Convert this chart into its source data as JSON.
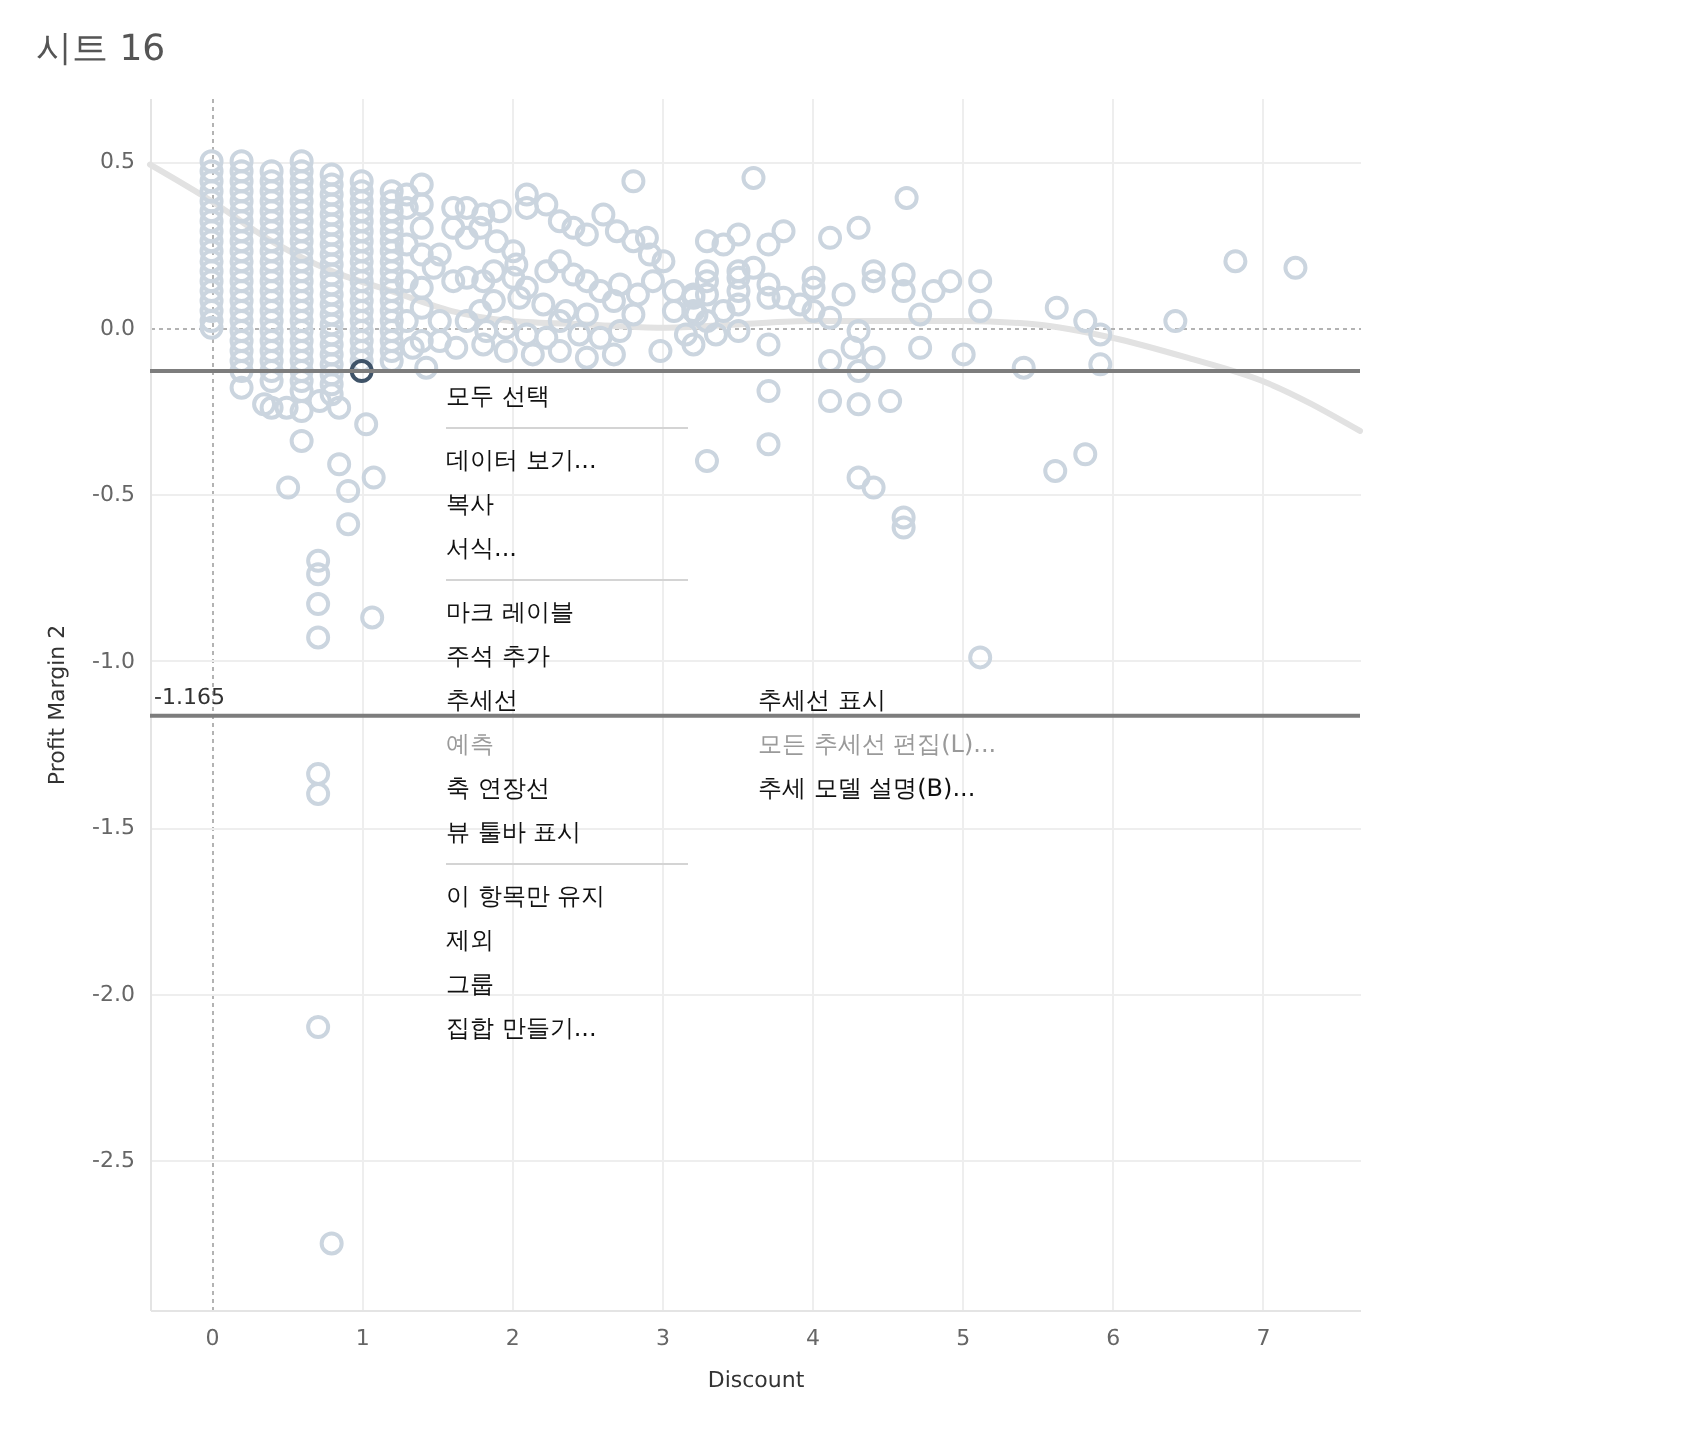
{
  "chart_data": {
    "type": "scatter",
    "title": "시트 16",
    "xlabel": "Discount",
    "ylabel": "Profit Margin 2",
    "xlim": [
      -0.41,
      7.65
    ],
    "ylim": [
      -2.95,
      0.69
    ],
    "xticks": [
      0,
      1,
      2,
      3,
      4,
      5,
      6,
      7
    ],
    "yticks": [
      0.5,
      {
        "value": 0,
        "label": "0.0"
      },
      -0.5,
      {
        "value": -1,
        "label": "-1.0"
      },
      -1.5,
      {
        "value": -2,
        "label": "-2.0"
      },
      -2.5
    ],
    "grid": true,
    "ref_lines": [
      {
        "axis": "y",
        "value": -0.13,
        "color": "#7d7d7d"
      },
      {
        "axis": "y",
        "value": -1.165,
        "label": "-1.165",
        "color": "#7d7d7d"
      }
    ],
    "annotations": [
      "모두 선택",
      "데이터 보기...",
      "복사",
      "서식...",
      "마크 레이블",
      "주석 추가",
      "추세선",
      "예측",
      "축 연장선",
      "뷰 툴바 표시",
      "이 항목만 유지",
      "제외",
      "그룹",
      "집합 만들기...",
      "추세선 표시",
      "모든 추세선 편집(L)...",
      "추세 모델 설명(B)..."
    ],
    "series": [
      {
        "type": "line",
        "color": "#e2e2e2",
        "x": [
          -0.41,
          0,
          0.4,
          0.8,
          1.2,
          1.6,
          2,
          2.5,
          3,
          3.5,
          4,
          4.5,
          5,
          5.5,
          6,
          6.5,
          7,
          7.65
        ],
        "values": [
          0.49,
          0.38,
          0.26,
          0.17,
          0.11,
          0.05,
          0.02,
          0.01,
          0,
          0.01,
          0.02,
          0.02,
          0.02,
          0.01,
          -0.03,
          -0.09,
          -0.16,
          -0.31
        ]
      },
      {
        "color": "#cbd5df",
        "marker": "circle",
        "x": [
          0,
          0,
          0,
          0,
          0,
          0,
          0,
          0,
          0,
          0,
          0,
          0,
          0,
          0,
          0,
          0,
          0,
          0,
          0.2,
          0.2,
          0.2,
          0.2,
          0.2,
          0.2,
          0.2,
          0.2,
          0.2,
          0.2,
          0.2,
          0.2,
          0.2,
          0.2,
          0.2,
          0.2,
          0.2,
          0.2,
          0.2,
          0.2,
          0.2,
          0.2,
          0.2,
          0.4,
          0.4,
          0.4,
          0.4,
          0.4,
          0.4,
          0.4,
          0.4,
          0.4,
          0.4,
          0.4,
          0.4,
          0.4,
          0.4,
          0.4,
          0.4,
          0.4,
          0.4,
          0.4,
          0.4,
          0.4,
          0.4,
          0.6,
          0.6,
          0.6,
          0.6,
          0.6,
          0.6,
          0.6,
          0.6,
          0.6,
          0.6,
          0.6,
          0.6,
          0.6,
          0.6,
          0.6,
          0.6,
          0.6,
          0.6,
          0.6,
          0.6,
          0.6,
          0.6,
          0.6,
          0.6,
          0.8,
          0.8,
          0.8,
          0.8,
          0.8,
          0.8,
          0.8,
          0.8,
          0.8,
          0.8,
          0.8,
          0.8,
          0.8,
          0.8,
          0.8,
          0.8,
          0.8,
          0.8,
          0.8,
          0.8,
          0.8,
          0.8,
          0.8,
          1,
          1,
          1,
          1,
          1,
          1,
          1,
          1,
          1,
          1,
          1,
          1,
          1,
          1,
          1,
          1,
          1,
          1,
          1,
          1.2,
          1.2,
          1.2,
          1.2,
          1.2,
          1.2,
          1.2,
          1.2,
          1.2,
          1.2,
          1.2,
          1.2,
          1.2,
          1.2,
          1.2,
          1.2,
          1.2,
          1.2,
          1.3,
          1.3,
          1.3,
          1.3,
          1.3,
          1.34,
          1.4,
          1.4,
          1.4,
          1.4,
          1.4,
          1.4,
          1.4,
          1.43,
          0.35,
          0.4,
          0.5,
          0.6,
          0.72,
          0.85,
          1.03,
          0.6,
          0.85,
          0.51,
          0.91,
          0.91,
          0.71,
          0.71,
          0.71,
          0.71,
          0.71,
          0.71,
          0.71,
          0.8,
          1.08,
          1.07,
          1.61,
          1.7,
          1.81,
          1.92,
          2.1,
          2.1,
          2.23,
          2.32,
          2.41,
          2.5,
          2.61,
          2.81,
          2.7,
          2.81,
          2.9,
          2.92,
          3.01,
          3.3,
          3.3,
          1.61,
          1.7,
          1.79,
          1.9,
          2.01,
          2.03,
          1.52,
          1.48,
          1.61,
          1.7,
          1.81,
          1.88,
          2.01,
          2.1,
          2.23,
          2.32,
          2.41,
          2.5,
          2.59,
          2.72,
          2.84,
          2.94,
          3.08,
          3.21,
          3.08,
          3.23,
          2.81,
          2.68,
          2.5,
          2.36,
          2.21,
          2.05,
          1.88,
          1.79,
          1.7,
          1.83,
          1.96,
          2.1,
          2.23,
          2.32,
          2.45,
          2.59,
          2.72,
          2.99,
          2.68,
          2.5,
          2.32,
          2.14,
          1.96,
          1.81,
          1.63,
          1.52,
          1.52,
          3.16,
          3.3,
          3.61,
          4.63,
          3.41,
          3.51,
          3.71,
          3.81,
          4.12,
          4.31,
          3.3,
          3.51,
          3.51,
          3.61,
          3.21,
          3.3,
          3.51,
          3.51,
          3.71,
          3.71,
          3.81,
          3.92,
          4.01,
          4.01,
          4.01,
          4.12,
          4.21,
          4.41,
          4.41,
          4.61,
          4.61,
          4.81,
          4.92,
          5.12,
          5.12,
          4.72,
          5.63,
          5.82,
          5.92,
          5.92,
          6.42,
          6.82,
          7.22,
          3.21,
          3.41,
          3.36,
          3.51,
          3.21,
          3.71,
          4.31,
          4.27,
          4.41,
          4.12,
          4.31,
          4.72,
          5.01,
          5.41,
          3.71,
          4.12,
          4.31,
          4.52,
          3.71,
          3.3,
          5.62,
          5.82,
          4.31,
          4.41,
          4.61,
          4.61,
          5.12
        ],
        "values": [
          0.5,
          0.47,
          0.44,
          0.41,
          0.38,
          0.35,
          0.32,
          0.29,
          0.26,
          0.23,
          0.2,
          0.17,
          0.14,
          0.11,
          0.08,
          0.05,
          0.02,
          0,
          0.5,
          0.47,
          0.44,
          0.41,
          0.38,
          0.35,
          0.32,
          0.29,
          0.26,
          0.23,
          0.2,
          0.17,
          0.14,
          0.11,
          0.08,
          0.05,
          0.02,
          -0.01,
          -0.04,
          -0.07,
          -0.1,
          -0.13,
          -0.18,
          0.47,
          0.44,
          0.41,
          0.38,
          0.35,
          0.32,
          0.29,
          0.26,
          0.23,
          0.2,
          0.17,
          0.14,
          0.11,
          0.08,
          0.05,
          0.02,
          -0.01,
          -0.04,
          -0.07,
          -0.1,
          -0.13,
          -0.16,
          0.5,
          0.47,
          0.44,
          0.41,
          0.38,
          0.35,
          0.32,
          0.29,
          0.26,
          0.23,
          0.2,
          0.17,
          0.14,
          0.11,
          0.08,
          0.05,
          0.02,
          -0.01,
          -0.04,
          -0.07,
          -0.1,
          -0.13,
          -0.16,
          -0.19,
          0.46,
          0.43,
          0.4,
          0.37,
          0.34,
          0.31,
          0.28,
          0.25,
          0.22,
          0.19,
          0.16,
          0.13,
          0.1,
          0.07,
          0.04,
          0.01,
          -0.02,
          -0.05,
          -0.08,
          -0.11,
          -0.14,
          -0.17,
          -0.2,
          0.44,
          0.41,
          0.38,
          0.35,
          0.32,
          0.29,
          0.26,
          0.23,
          0.2,
          0.17,
          0.14,
          0.11,
          0.08,
          0.05,
          0.02,
          -0.01,
          -0.04,
          -0.07,
          -0.1,
          0.41,
          0.38,
          0.35,
          0.32,
          0.29,
          0.26,
          0.23,
          0.2,
          0.17,
          0.14,
          0.11,
          0.08,
          0.05,
          0.02,
          -0.01,
          -0.04,
          -0.07,
          -0.1,
          0.4,
          0.36,
          0.25,
          0.14,
          0.02,
          -0.06,
          0.43,
          0.37,
          0.3,
          0.22,
          0.12,
          0.06,
          -0.04,
          -0.12,
          -0.23,
          -0.24,
          -0.24,
          -0.25,
          -0.22,
          -0.24,
          -0.29,
          -0.34,
          -0.41,
          -0.48,
          -0.49,
          -0.59,
          -0.7,
          -0.74,
          -0.83,
          -0.93,
          -1.34,
          -1.4,
          -2.1,
          -2.75,
          -0.45,
          -0.87,
          0.36,
          0.36,
          0.34,
          0.35,
          0.4,
          0.36,
          0.37,
          0.32,
          0.3,
          0.28,
          0.34,
          0.44,
          0.29,
          0.26,
          0.27,
          0.22,
          0.2,
          0.26,
          0.17,
          0.3,
          0.27,
          0.3,
          0.26,
          0.23,
          0.19,
          0.22,
          0.18,
          0.14,
          0.15,
          0.14,
          0.17,
          0.15,
          0.12,
          0.17,
          0.2,
          0.16,
          0.14,
          0.11,
          0.13,
          0.1,
          0.14,
          0.11,
          0.09,
          0.05,
          0.04,
          0.04,
          0.08,
          0.04,
          0.05,
          0.07,
          0.09,
          0.08,
          0.05,
          0.02,
          -0.01,
          0,
          -0.02,
          -0.03,
          0.02,
          -0.02,
          -0.03,
          -0.01,
          -0.07,
          -0.08,
          -0.09,
          -0.07,
          -0.08,
          -0.07,
          -0.05,
          -0.06,
          -0.04,
          0.02,
          -0.02,
          0.02,
          0.45,
          0.39,
          0.25,
          0.28,
          0.25,
          0.29,
          0.27,
          0.3,
          0.14,
          0.17,
          0.15,
          0.18,
          0.1,
          0.1,
          0.11,
          0.07,
          0.13,
          0.09,
          0.09,
          0.07,
          0.15,
          0.12,
          0.05,
          0.03,
          0.1,
          0.17,
          0.14,
          0.16,
          0.11,
          0.11,
          0.14,
          0.14,
          0.05,
          0.04,
          0.06,
          0.02,
          -0.02,
          -0.11,
          0.02,
          0.2,
          0.18,
          0.05,
          0.05,
          -0.02,
          -0.01,
          -0.05,
          -0.05,
          -0.01,
          -0.06,
          -0.09,
          -0.1,
          -0.13,
          -0.06,
          -0.08,
          -0.12,
          -0.19,
          -0.22,
          -0.23,
          -0.22,
          -0.35,
          -0.4,
          -0.43,
          -0.38,
          -0.45,
          -0.48,
          -0.57,
          -0.6,
          -0.99
        ]
      },
      {
        "color": "#3f5368",
        "marker": "circle",
        "x": [
          1
        ],
        "values": [
          -0.13
        ]
      }
    ]
  }
}
